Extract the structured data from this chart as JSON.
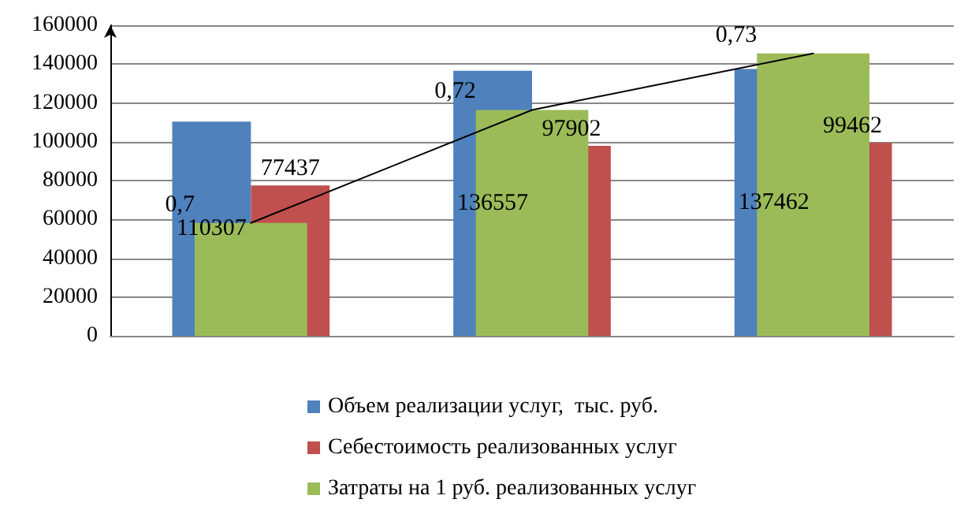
{
  "chart_data": {
    "type": "bar",
    "categories": [
      null,
      null,
      null
    ],
    "ylim": [
      0,
      160000
    ],
    "yticks": [
      0,
      20000,
      40000,
      60000,
      80000,
      100000,
      120000,
      140000,
      160000
    ],
    "y2lim": [
      0.68,
      0.735
    ],
    "grid": "y",
    "legend": "bottom",
    "series": [
      {
        "name": "Объем реализации услуг,  тыс. руб.",
        "color": "#4f81bd",
        "values": [
          110307,
          136557,
          137462
        ],
        "data_labels": true
      },
      {
        "name": "Себестоимость реализованных услуг",
        "color": "#c0504d",
        "values": [
          77437,
          97902,
          99462
        ],
        "data_labels": true
      },
      {
        "name": "Затраты на 1 руб. реализованных услуг",
        "color": "#9bbb59",
        "values": [
          0.7,
          0.72,
          0.73
        ],
        "axis": "y2",
        "value_labels": [
          "0,7",
          "0,72",
          "0,73"
        ]
      },
      {
        "type": "line",
        "color": "#000000",
        "values": [
          0.7,
          0.72,
          0.73
        ],
        "axis": "y2",
        "marker": "none"
      }
    ]
  }
}
